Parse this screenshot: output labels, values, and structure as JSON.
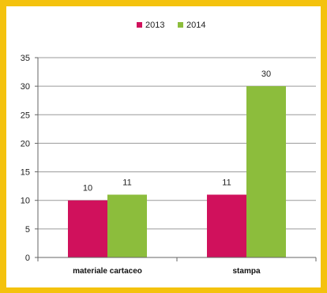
{
  "chart_data": {
    "type": "bar",
    "categories": [
      "materiale cartaceo",
      "stampa"
    ],
    "series": [
      {
        "name": "2013",
        "values": [
          10,
          11
        ],
        "color": "#d0115c"
      },
      {
        "name": "2014",
        "values": [
          11,
          30
        ],
        "color": "#8cbd3c"
      }
    ],
    "ylim": [
      0,
      35
    ],
    "yticks": [
      0,
      5,
      10,
      15,
      20,
      25,
      30,
      35
    ],
    "grid": true,
    "legend_position": "top"
  }
}
